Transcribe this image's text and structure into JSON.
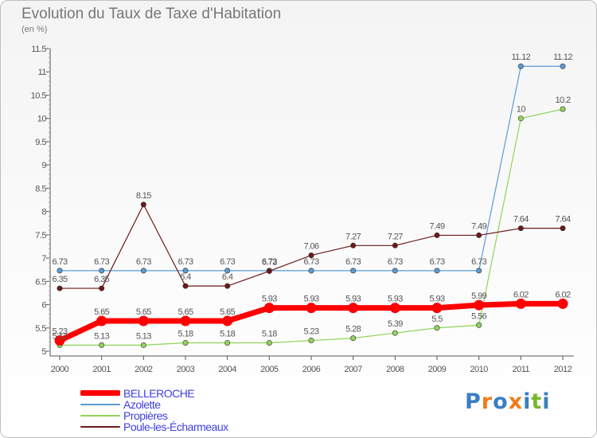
{
  "title": "Evolution du Taux de Taxe d'Habitation",
  "subtitle": "(en %)",
  "logo": {
    "text": "Proxiti",
    "letter_colors": [
      "#3a7fc2",
      "#f07d1a",
      "#3a7fc2",
      "#f07d1a",
      "#3a7fc2",
      "#77b82a",
      "#3a7fc2"
    ]
  },
  "chart_data": {
    "type": "line",
    "title": "Evolution du Taux de Taxe d'Habitation",
    "ylabel": "(en %)",
    "xlabel": "",
    "x": [
      2000,
      2001,
      2002,
      2003,
      2004,
      2005,
      2006,
      2007,
      2008,
      2009,
      2010,
      2011,
      2012
    ],
    "ylim": [
      5,
      11.5
    ],
    "yticks": [
      "5",
      "5.5",
      "6",
      "6.5",
      "7",
      "7.5",
      "8",
      "8.5",
      "9",
      "9.5",
      "10",
      "10.5",
      "11",
      "11.5"
    ],
    "grid": false,
    "legend_position": "bottom-left",
    "series": [
      {
        "name": "BELLEROCHE",
        "color": "#ff0000",
        "values": [
          5.23,
          5.65,
          5.65,
          5.65,
          5.65,
          5.93,
          5.93,
          5.93,
          5.93,
          5.93,
          5.99,
          6.02,
          6.02
        ],
        "labels": [
          "5.23",
          "5.65",
          "5.65",
          "5.65",
          "5.65",
          "5.93",
          "5.93",
          "5.93",
          "5.93",
          "5.93",
          "5.99",
          "6.02",
          "6.02"
        ]
      },
      {
        "name": "Azolette",
        "color": "#5a9bd4",
        "values": [
          6.73,
          6.73,
          6.73,
          6.73,
          6.73,
          6.73,
          6.73,
          6.73,
          6.73,
          6.73,
          6.73,
          11.12,
          11.12
        ],
        "labels": [
          "6.73",
          "6.73",
          "6.73",
          "6.73",
          "6.73",
          "6.73",
          "6.73",
          "6.73",
          "6.73",
          "6.73",
          "6.73",
          "11.12",
          "11.12"
        ]
      },
      {
        "name": "Propières",
        "color": "#8fd45a",
        "values": [
          5.13,
          5.13,
          5.13,
          5.18,
          5.18,
          5.18,
          5.23,
          5.28,
          5.39,
          5.5,
          5.56,
          10,
          10.2
        ],
        "labels": [
          "5.13",
          "5.13",
          "5.13",
          "5.18",
          "5.18",
          "5.18",
          "5.23",
          "5.28",
          "5.39",
          "5.5",
          "5.56",
          "10",
          "10.2"
        ]
      },
      {
        "name": "Poule-les-Écharmeaux",
        "color": "#6b1a1a",
        "values": [
          6.35,
          6.35,
          8.15,
          6.4,
          6.4,
          6.72,
          7.06,
          7.27,
          7.27,
          7.49,
          7.49,
          7.64,
          7.64
        ],
        "labels": [
          "6.35",
          "6.35",
          "8.15",
          "6.4",
          "6.4",
          "6.72",
          "7.06",
          "7.27",
          "7.27",
          "7.49",
          "7.49",
          "7.64",
          "7.64"
        ]
      }
    ]
  }
}
